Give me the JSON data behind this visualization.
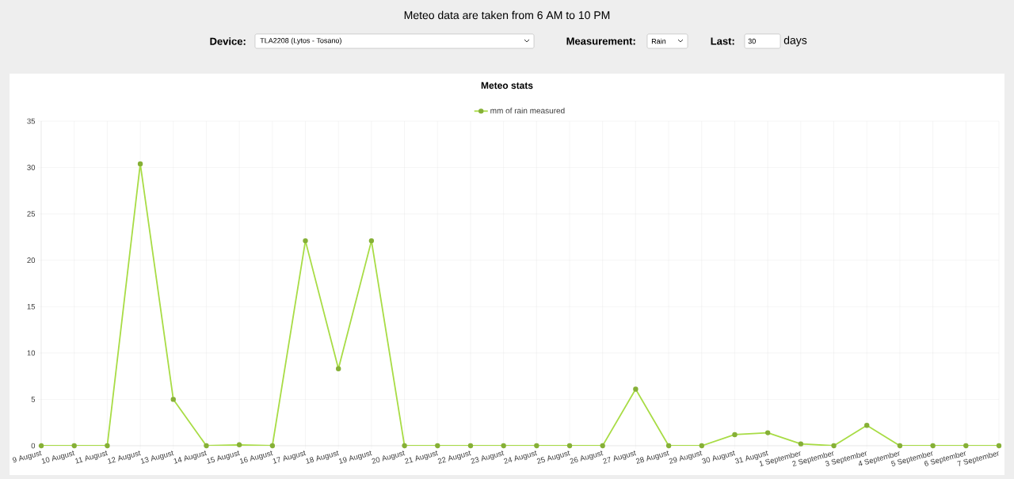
{
  "chart_data": {
    "type": "line",
    "title": "Meteo stats",
    "annotations": [
      "Meteo data are taken from 6 AM to 10 PM",
      "Device:",
      "TLA2208 (Lytos - Tosano)",
      "Measurement:",
      "Rain",
      "Last:",
      "30",
      "days"
    ],
    "categories": [
      "9 August",
      "10 August",
      "11 August",
      "12 August",
      "13 August",
      "14 August",
      "15 August",
      "16 August",
      "17 August",
      "18 August",
      "19 August",
      "20 August",
      "21 August",
      "22 August",
      "23 August",
      "24 August",
      "25 August",
      "26 August",
      "27 August",
      "28 August",
      "29 August",
      "30 August",
      "31 August",
      "1 September",
      "2 September",
      "3 September",
      "4 September",
      "5 September",
      "6 September",
      "7 September"
    ],
    "series": [
      {
        "name": "mm of rain measured",
        "color": "#a8dc45",
        "values": [
          0,
          0,
          0,
          30.4,
          5,
          0,
          0.1,
          0,
          22.1,
          8.3,
          22.1,
          0,
          0,
          0,
          0,
          0,
          0,
          0,
          6.1,
          0,
          0,
          1.2,
          1.4,
          0.2,
          0,
          2.2,
          0,
          0,
          0,
          0
        ]
      }
    ],
    "ylim": [
      0,
      35
    ],
    "yticks": [
      0,
      5,
      10,
      15,
      20,
      25,
      30,
      35
    ],
    "grid": true,
    "legend": "top",
    "marker": "circle",
    "line_style": "solid"
  }
}
